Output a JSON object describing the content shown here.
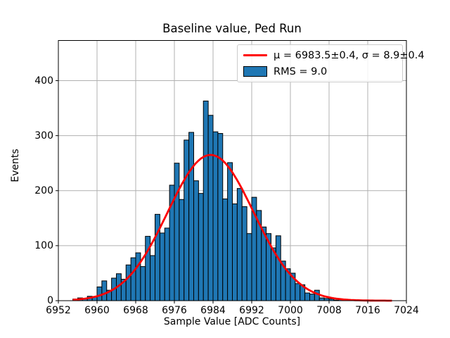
{
  "figure_title": "Baseline value, Ped Run",
  "legend": {
    "entries": [
      {
        "sample": "line",
        "color": "#ff0000",
        "label": "μ = 6983.5±0.4, σ = 8.9±0.4"
      },
      {
        "sample": "patch",
        "color": "#1f77b4",
        "edge_color": "#000000",
        "label": "RMS = 9.0"
      }
    ]
  },
  "chart_data": {
    "type": "bar",
    "subtype": "histogram-with-gaussian-fit",
    "title": "Baseline value, Ped Run",
    "xlabel": "Sample Value [ADC Counts]",
    "ylabel": "Events",
    "bin_start": 6955,
    "bin_width": 1,
    "counts": [
      3,
      5,
      4,
      8,
      7,
      25,
      36,
      19,
      41,
      49,
      39,
      65,
      78,
      87,
      62,
      117,
      82,
      157,
      123,
      132,
      210,
      250,
      184,
      292,
      306,
      218,
      195,
      363,
      337,
      307,
      304,
      185,
      251,
      176,
      204,
      171,
      122,
      188,
      164,
      134,
      122,
      96,
      118,
      72,
      58,
      50,
      31,
      29,
      14,
      12,
      19,
      5,
      4,
      3,
      1,
      2
    ],
    "xlim": [
      6952,
      7024
    ],
    "ylim": [
      0,
      473
    ],
    "xticks": [
      6952,
      6960,
      6968,
      6976,
      6984,
      6992,
      7000,
      7008,
      7016,
      7024
    ],
    "yticks": [
      0,
      100,
      200,
      300,
      400
    ],
    "grid": true,
    "legend_position": "upper right",
    "bar_color": "#1f77b4",
    "bar_edge_color": "#000000",
    "grid_color": "#b0b0b0",
    "spine_color": "#000000",
    "background": "#ffffff",
    "fit_curve": {
      "shape": "gaussian",
      "mu": 6983.5,
      "mu_err": 0.4,
      "sigma": 8.9,
      "sigma_err": 0.4,
      "rms": 9.0,
      "amplitude": 265,
      "color": "#ff0000",
      "x_range": [
        6955,
        7021
      ]
    }
  }
}
